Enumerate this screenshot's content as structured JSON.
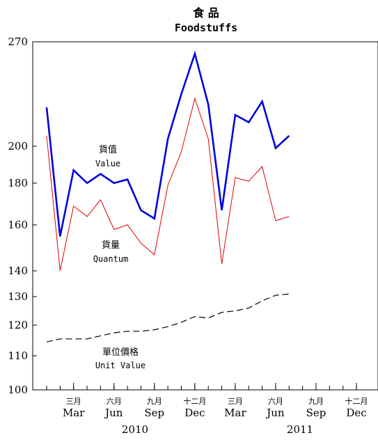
{
  "title_cn": "食 品",
  "title_en": "Foodstuffs",
  "chart_data": {
    "type": "line",
    "title": "食 品 Foodstuffs",
    "x": [
      "2010-01",
      "2010-02",
      "2010-03",
      "2010-04",
      "2010-05",
      "2010-06",
      "2010-07",
      "2010-08",
      "2010-09",
      "2010-10",
      "2010-11",
      "2010-12",
      "2011-01",
      "2011-02",
      "2011-03",
      "2011-04",
      "2011-05",
      "2011-06",
      "2011-07"
    ],
    "y_ticks": [
      100,
      110,
      120,
      130,
      140,
      160,
      180,
      200,
      270
    ],
    "ylim": [
      100,
      270
    ],
    "month_ticks": [
      {
        "cn": "三月",
        "en": "Mar"
      },
      {
        "cn": "六月",
        "en": "Jun"
      },
      {
        "cn": "九月",
        "en": "Sep"
      },
      {
        "cn": "十二月",
        "en": "Dec"
      },
      {
        "cn": "三月",
        "en": "Mar"
      },
      {
        "cn": "六月",
        "en": "Jun"
      },
      {
        "cn": "九月",
        "en": "Sep"
      },
      {
        "cn": "十二月",
        "en": "Dec"
      }
    ],
    "years": [
      "2010",
      "2011"
    ],
    "series": [
      {
        "name": "貨值 Value",
        "name_cn": "貨值",
        "name_en": "Value",
        "color": "#0000dd",
        "style": "solid-thick",
        "values": [
          226,
          155,
          187,
          180,
          185,
          180,
          182,
          167,
          163,
          205,
          235,
          262,
          228,
          167,
          221,
          216,
          230,
          199,
          207
        ]
      },
      {
        "name": "貨量 Quantum",
        "name_cn": "貨量",
        "name_en": "Quantum",
        "color": "#e00000",
        "style": "solid-thin",
        "values": [
          207,
          140,
          169,
          164,
          172,
          158,
          160,
          152,
          147,
          179,
          197,
          232,
          205,
          143,
          183,
          181,
          189,
          162,
          164
        ]
      },
      {
        "name": "單位價格 Unit Value",
        "name_cn": "單位價格",
        "name_en": "Unit Value",
        "color": "#000000",
        "style": "dashed",
        "values": [
          114.5,
          115.5,
          115.5,
          115.5,
          116.5,
          117.5,
          118,
          118,
          118.5,
          119.5,
          121,
          123,
          122.5,
          124.5,
          125,
          126,
          128.5,
          130.5,
          131
        ]
      }
    ]
  }
}
